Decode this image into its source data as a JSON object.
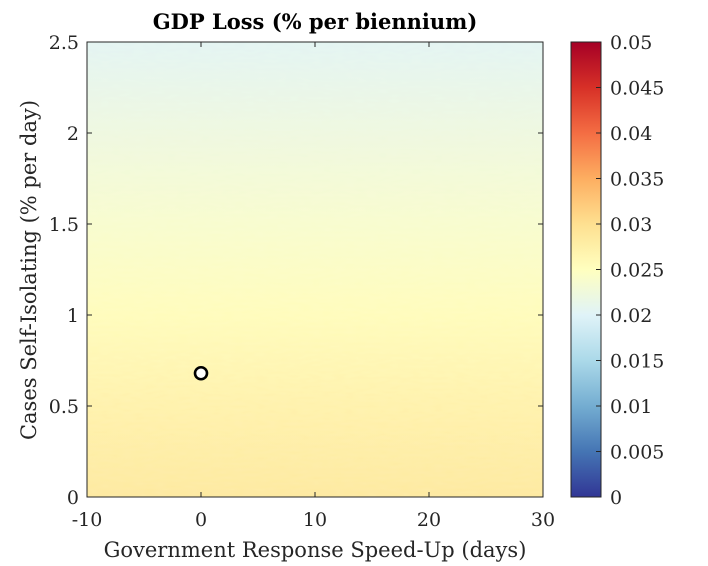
{
  "chart_data": {
    "type": "heatmap",
    "title": "GDP Loss (% per biennium)",
    "xlabel": "Government Response Speed-Up (days)",
    "ylabel": "Cases Self-Isolating (% per day)",
    "xlim": [
      -10,
      30
    ],
    "ylim": [
      0,
      2.5
    ],
    "x_ticks": [
      -10,
      0,
      10,
      20,
      30
    ],
    "x_tick_labels": [
      "-10",
      "0",
      "10",
      "20",
      "30"
    ],
    "y_ticks": [
      0,
      0.5,
      1,
      1.5,
      2,
      2.5
    ],
    "y_tick_labels": [
      "0",
      "0.5",
      "1",
      "1.5",
      "2",
      "2.5"
    ],
    "colorbar": {
      "limits": [
        0,
        0.05
      ],
      "ticks": [
        0,
        0.005,
        0.01,
        0.015,
        0.02,
        0.025,
        0.03,
        0.035,
        0.04,
        0.045,
        0.05
      ],
      "tick_labels": [
        "0",
        "0.005",
        "0.01",
        "0.015",
        "0.02",
        "0.025",
        "0.03",
        "0.035",
        "0.04",
        "0.045",
        "0.05"
      ],
      "colormap": [
        "#313695",
        "#4575b4",
        "#74add1",
        "#abd9e9",
        "#e0f3f8",
        "#ffffbf",
        "#fee090",
        "#fdae61",
        "#f46d43",
        "#d73027",
        "#a50026"
      ]
    },
    "value_gradient": {
      "description_axis": "y",
      "y": [
        0,
        0.5,
        1,
        1.5,
        2,
        2.5
      ],
      "values": [
        0.0285,
        0.0272,
        0.0255,
        0.0238,
        0.0222,
        0.0205
      ]
    },
    "marker": {
      "x": 0,
      "y": 0.68,
      "style": "circle"
    }
  }
}
